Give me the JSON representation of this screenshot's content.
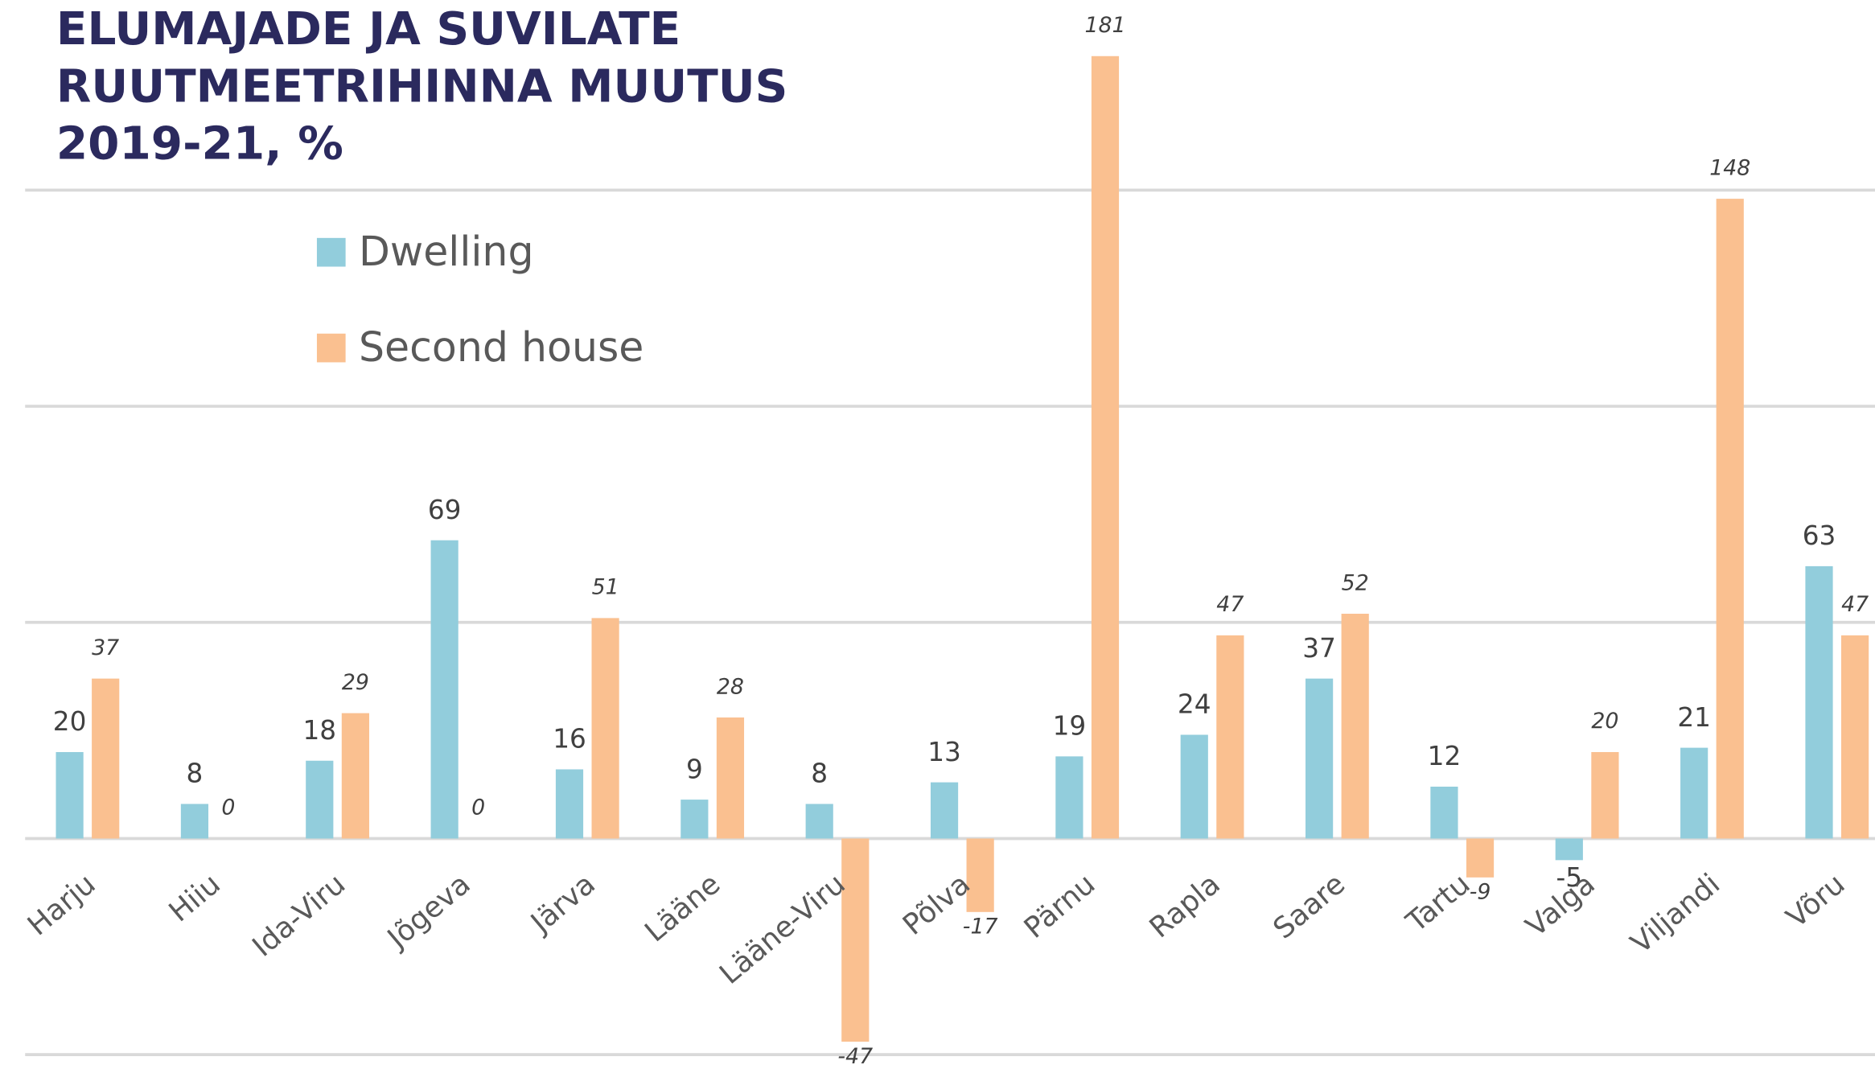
{
  "chart_data": {
    "type": "bar",
    "title": [
      "ELUMAJADE JA SUVILATE",
      "RUUTMEETRIHINNA MUUTUS",
      "2019-21, %"
    ],
    "categories": [
      "Harju",
      "Hiiu",
      "Ida-Viru",
      "Jõgeva",
      "Järva",
      "Lääne",
      "Lääne-Viru",
      "Põlva",
      "Pärnu",
      "Rapla",
      "Saare",
      "Tartu",
      "Valga",
      "Viljandi",
      "Võru"
    ],
    "series": [
      {
        "name": "Dwelling",
        "color": "#92cddc",
        "values": [
          20,
          8,
          18,
          69,
          16,
          9,
          8,
          13,
          19,
          24,
          37,
          12,
          -5,
          21,
          63
        ]
      },
      {
        "name": "Second house",
        "color": "#fac090",
        "values": [
          37,
          0,
          29,
          0,
          51,
          28,
          -47,
          -17,
          181,
          47,
          52,
          -9,
          20,
          148,
          47
        ]
      }
    ],
    "ylim": [
      -50,
      190
    ],
    "yticks": [
      -50,
      0,
      50,
      100,
      150
    ],
    "grid": true,
    "legend": "top-left"
  }
}
